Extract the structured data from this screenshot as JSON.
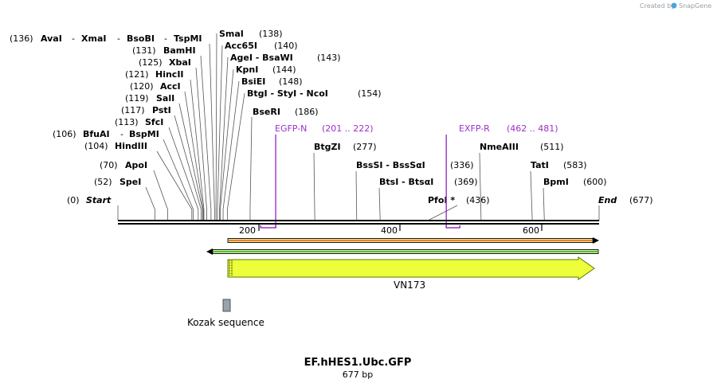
{
  "credit": {
    "prefix": "Created by",
    "brand": "SnapGene"
  },
  "colors": {
    "primer": "#9b30c6",
    "feature": "#ecff3a",
    "arrow_outline": "#5a7a00",
    "orange": "#e8891a",
    "green": "#5bbf2a",
    "kozak": "#9aa3ab"
  },
  "sequence": {
    "name": "EF.hHES1.Ubc.GFP",
    "length_label": "677 bp",
    "length": 677
  },
  "enzyme_rows": [
    {
      "row": 0,
      "items": [
        {
          "name": "AvaI",
          "pos": 136
        },
        {
          "name": "XmaI",
          "pos": 136
        },
        {
          "name": "BsoBI",
          "pos": 136
        },
        {
          "name": "TspMI",
          "pos": 136
        }
      ],
      "pos_label": "(136)"
    },
    {
      "row": 1,
      "items": [
        {
          "name": "BamHI",
          "pos": 131
        }
      ],
      "pos_label": "(131)"
    },
    {
      "row": 2,
      "items": [
        {
          "name": "XbaI",
          "pos": 125
        }
      ],
      "pos_label": "(125)"
    },
    {
      "row": 3,
      "items": [
        {
          "name": "HincII",
          "pos": 121
        }
      ],
      "pos_label": "(121)"
    },
    {
      "row": 4,
      "items": [
        {
          "name": "AccI",
          "pos": 120
        }
      ],
      "pos_label": "(120)"
    },
    {
      "row": 5,
      "items": [
        {
          "name": "SalI",
          "pos": 119
        }
      ],
      "pos_label": "(119)"
    },
    {
      "row": 6,
      "items": [
        {
          "name": "PstI",
          "pos": 117
        }
      ],
      "pos_label": "(117)"
    },
    {
      "row": 7,
      "items": [
        {
          "name": "SfcI",
          "pos": 113
        }
      ],
      "pos_label": "(113)"
    },
    {
      "row": 8,
      "items": [
        {
          "name": "BfuAI",
          "pos": 106
        },
        {
          "name": "BspMI",
          "pos": 106
        }
      ],
      "pos_label": "(106)"
    },
    {
      "row": 9,
      "items": [
        {
          "name": "HindIII",
          "pos": 104
        }
      ],
      "pos_label": "(104)"
    },
    {
      "row": 10,
      "items": [
        {
          "name": "ApoI",
          "pos": 70
        }
      ],
      "pos_label": "(70)"
    },
    {
      "row": 11,
      "items": [
        {
          "name": "SpeI",
          "pos": 52
        }
      ],
      "pos_label": "(52)"
    }
  ],
  "right_sites": [
    {
      "name": "SmaI",
      "pos_label": "(138)",
      "pos": 138
    },
    {
      "name": "Acc65I",
      "pos_label": "(140)",
      "pos": 140
    },
    {
      "name": "AgeI - BsaWI",
      "pos_label": "(143)",
      "pos": 143
    },
    {
      "name": "KpnI",
      "pos_label": "(144)",
      "pos": 144
    },
    {
      "name": "BsiEI",
      "pos_label": "(148)",
      "pos": 148
    },
    {
      "name": "BtgI - StyI - NcoI",
      "pos_label": "(154)",
      "pos": 154
    },
    {
      "name": "BseRI",
      "pos_label": "(186)",
      "pos": 186
    }
  ],
  "downstream_sites": [
    {
      "name": "BtgZI",
      "pos_label": "(277)",
      "pos": 277
    },
    {
      "name": "BssSI - BssSαI",
      "pos_label": "(336)",
      "pos": 336
    },
    {
      "name": "BtsI - BtsαI",
      "pos_label": "(369)",
      "pos": 369
    },
    {
      "name": "PfoI *",
      "pos_label": "(436)",
      "pos": 436
    },
    {
      "name": "NmeAIII",
      "pos_label": "(511)",
      "pos": 511
    },
    {
      "name": "TatI",
      "pos_label": "(583)",
      "pos": 583
    },
    {
      "name": "BpmI",
      "pos_label": "(600)",
      "pos": 600
    }
  ],
  "ends": {
    "start_label": "Start",
    "start_pos": "(0)",
    "end_label": "End",
    "end_pos": "(677)"
  },
  "primers": [
    {
      "name": "EGFP-N",
      "range": "(201 .. 222)",
      "start": 201,
      "end": 222,
      "dir": "fwd"
    },
    {
      "name": "EXFP-R",
      "range": "(462 .. 481)",
      "start": 462,
      "end": 481,
      "dir": "rev"
    }
  ],
  "ruler_ticks": [
    "200",
    "400",
    "600"
  ],
  "features": {
    "main_label": "VN173",
    "kozak_label": "Kozak sequence"
  }
}
